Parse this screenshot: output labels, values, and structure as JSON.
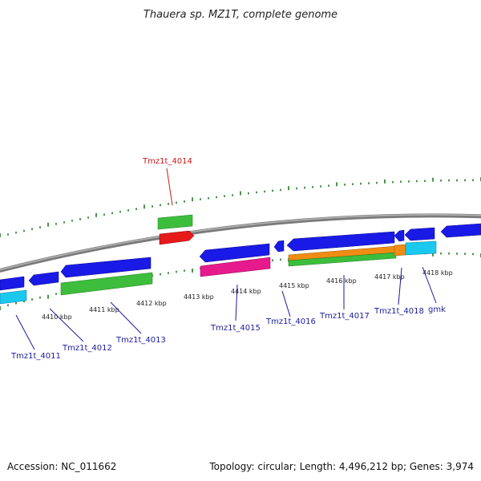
{
  "title": "Thauera sp. MZ1T, complete genome",
  "footer": {
    "accession": "Accession: NC_011662",
    "topology": "Topology: circular; Length: 4,496,212 bp; Genes: 3,974"
  },
  "scale_labels": [
    "4410 kbp",
    "4411 kbp",
    "4412 kbp",
    "4413 kbp",
    "4414 kbp",
    "4415 kbp",
    "4416 kbp",
    "4417 kbp",
    "4418 kbp"
  ],
  "genes": [
    {
      "id": "Tmz1t_4011",
      "label": "Tmz1t_4011",
      "highlight": false
    },
    {
      "id": "Tmz1t_4012",
      "label": "Tmz1t_4012",
      "highlight": false
    },
    {
      "id": "Tmz1t_4013",
      "label": "Tmz1t_4013",
      "highlight": false
    },
    {
      "id": "Tmz1t_4014",
      "label": "Tmz1t_4014",
      "highlight": true
    },
    {
      "id": "Tmz1t_4015",
      "label": "Tmz1t_4015",
      "highlight": false
    },
    {
      "id": "Tmz1t_4016",
      "label": "Tmz1t_4016",
      "highlight": false
    },
    {
      "id": "Tmz1t_4017",
      "label": "Tmz1t_4017",
      "highlight": false
    },
    {
      "id": "Tmz1t_4018",
      "label": "Tmz1t_4018",
      "highlight": false
    },
    {
      "id": "gmk",
      "label": "gmk",
      "highlight": false
    }
  ],
  "colors": {
    "backbone": "#8a8a8a",
    "cds_blue": "#1a1ae6",
    "cds_green": "#3cbe3c",
    "cds_red": "#e61a1a",
    "cds_magenta": "#e61a8c",
    "cds_orange": "#f08c14",
    "cds_cyan": "#1ac8f0",
    "ticks": "#1e7a1e",
    "label_default": "#1c1c9c",
    "label_highlight": "#cc1a1a"
  }
}
